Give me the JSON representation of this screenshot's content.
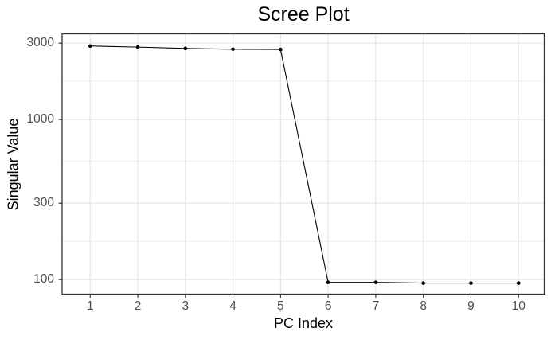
{
  "chart_data": {
    "type": "line",
    "title": "Scree Plot",
    "xlabel": "PC Index",
    "ylabel": "Singular Value",
    "x": [
      1,
      2,
      3,
      4,
      5,
      6,
      7,
      8,
      9,
      10
    ],
    "values": [
      2880,
      2835,
      2780,
      2750,
      2740,
      96,
      96,
      95,
      95,
      95
    ],
    "yscale": "log10",
    "y_ticks": [
      3000,
      1000,
      300,
      100
    ],
    "y_tick_labels": [
      "3000",
      "1000",
      "300",
      "100"
    ],
    "y_minor_gridlines": [
      1732,
      548,
      173
    ],
    "x_ticks": [
      1,
      2,
      3,
      4,
      5,
      6,
      7,
      8,
      9,
      10
    ],
    "x_tick_labels": [
      "1",
      "2",
      "3",
      "4",
      "5",
      "6",
      "7",
      "8",
      "9",
      "10"
    ],
    "xlim": [
      0.41,
      10.54
    ],
    "ylim": [
      81,
      3430
    ],
    "grid": "major+minor",
    "legend": "none",
    "marker": "filled-circle",
    "colors": {
      "line": "#000000",
      "point": "#000000",
      "panel_border": "#333333",
      "grid_major": "#E5E5E5",
      "grid_minor": "#EDEDED",
      "tick_mark": "#333333",
      "tick_label": "#4D4D4D",
      "title": "#000000",
      "axis_title": "#000000",
      "background": "#FFFFFF"
    }
  }
}
